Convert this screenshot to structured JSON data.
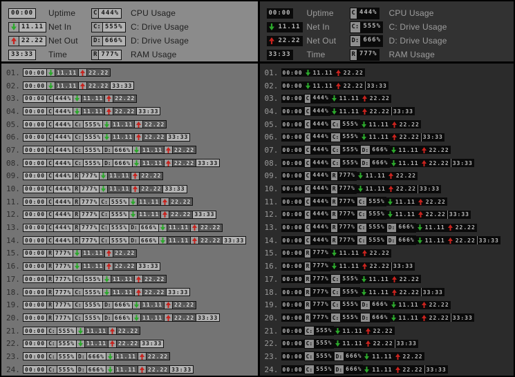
{
  "legend": {
    "col1": [
      {
        "badge": "uptime",
        "label": "Uptime"
      },
      {
        "badge": "netin",
        "label": "Net In"
      },
      {
        "badge": "netout",
        "label": "Net Out"
      },
      {
        "badge": "time",
        "label": "Time"
      }
    ],
    "col2": [
      {
        "badge": "cpu",
        "label": "CPU Usage"
      },
      {
        "badge": "cdrive",
        "label": "C: Drive Usage"
      },
      {
        "badge": "ddrive",
        "label": "D: Drive Usage"
      },
      {
        "badge": "ram",
        "label": "RAM Usage"
      }
    ]
  },
  "badges": {
    "uptime": {
      "kind": "plain",
      "value": "00:00"
    },
    "time": {
      "kind": "plain",
      "value": "33:33"
    },
    "netin": {
      "kind": "net",
      "dir": "down",
      "value": "11.11",
      "arrow_color": "#2ca82c"
    },
    "netout": {
      "kind": "net",
      "dir": "up",
      "value": "22.22",
      "arrow_color": "#c8231e"
    },
    "cpu": {
      "kind": "prefixed",
      "prefix": "C",
      "value": "444%"
    },
    "cdrive": {
      "kind": "prefixed",
      "prefix": "C:",
      "value": "555%"
    },
    "ddrive": {
      "kind": "prefixed",
      "prefix": "D:",
      "value": "666%"
    },
    "ram": {
      "kind": "prefixed",
      "prefix": "R",
      "value": "777%"
    }
  },
  "rows": [
    {
      "num": "01.",
      "badges": [
        "uptime",
        "netin",
        "netout"
      ]
    },
    {
      "num": "02.",
      "badges": [
        "uptime",
        "netin",
        "netout",
        "time"
      ]
    },
    {
      "num": "03.",
      "badges": [
        "uptime",
        "cpu",
        "netin",
        "netout"
      ]
    },
    {
      "num": "04.",
      "badges": [
        "uptime",
        "cpu",
        "netin",
        "netout",
        "time"
      ]
    },
    {
      "num": "05.",
      "badges": [
        "uptime",
        "cpu",
        "cdrive",
        "netin",
        "netout"
      ]
    },
    {
      "num": "06.",
      "badges": [
        "uptime",
        "cpu",
        "cdrive",
        "netin",
        "netout",
        "time"
      ]
    },
    {
      "num": "07.",
      "badges": [
        "uptime",
        "cpu",
        "cdrive",
        "ddrive",
        "netin",
        "netout"
      ]
    },
    {
      "num": "08.",
      "badges": [
        "uptime",
        "cpu",
        "cdrive",
        "ddrive",
        "netin",
        "netout",
        "time"
      ]
    },
    {
      "num": "09.",
      "badges": [
        "uptime",
        "cpu",
        "ram",
        "netin",
        "netout"
      ]
    },
    {
      "num": "10.",
      "badges": [
        "uptime",
        "cpu",
        "ram",
        "netin",
        "netout",
        "time"
      ]
    },
    {
      "num": "11.",
      "badges": [
        "uptime",
        "cpu",
        "ram",
        "cdrive",
        "netin",
        "netout"
      ]
    },
    {
      "num": "12.",
      "badges": [
        "uptime",
        "cpu",
        "ram",
        "cdrive",
        "netin",
        "netout",
        "time"
      ]
    },
    {
      "num": "13.",
      "badges": [
        "uptime",
        "cpu",
        "ram",
        "cdrive",
        "ddrive",
        "netin",
        "netout"
      ]
    },
    {
      "num": "14.",
      "badges": [
        "uptime",
        "cpu",
        "ram",
        "cdrive",
        "ddrive",
        "netin",
        "netout",
        "time"
      ]
    },
    {
      "num": "15.",
      "badges": [
        "uptime",
        "ram",
        "netin",
        "netout"
      ]
    },
    {
      "num": "16.",
      "badges": [
        "uptime",
        "ram",
        "netin",
        "netout",
        "time"
      ]
    },
    {
      "num": "17.",
      "badges": [
        "uptime",
        "ram",
        "cdrive",
        "netin",
        "netout"
      ]
    },
    {
      "num": "18.",
      "badges": [
        "uptime",
        "ram",
        "cdrive",
        "netin",
        "netout",
        "time"
      ]
    },
    {
      "num": "19.",
      "badges": [
        "uptime",
        "ram",
        "cdrive",
        "ddrive",
        "netin",
        "netout"
      ]
    },
    {
      "num": "20.",
      "badges": [
        "uptime",
        "ram",
        "cdrive",
        "ddrive",
        "netin",
        "netout",
        "time"
      ]
    },
    {
      "num": "21.",
      "badges": [
        "uptime",
        "cdrive",
        "netin",
        "netout"
      ]
    },
    {
      "num": "22.",
      "badges": [
        "uptime",
        "cdrive",
        "netin",
        "netout",
        "time"
      ]
    },
    {
      "num": "23.",
      "badges": [
        "uptime",
        "cdrive",
        "ddrive",
        "netin",
        "netout"
      ]
    },
    {
      "num": "24.",
      "badges": [
        "uptime",
        "cdrive",
        "ddrive",
        "netin",
        "netout",
        "time"
      ]
    }
  ],
  "colors": {
    "light_panel_bg": "#747474",
    "light_legend_bg": "#8b8b8b",
    "light_badge_bg": "#b4b4b4",
    "dark_panel_bg": "#2b2b2b",
    "dark_legend_bg": "#323232",
    "dark_badge_bg": "#0a0a0a",
    "net_in_arrow": "#2ca82c",
    "net_out_arrow": "#c8231e"
  }
}
